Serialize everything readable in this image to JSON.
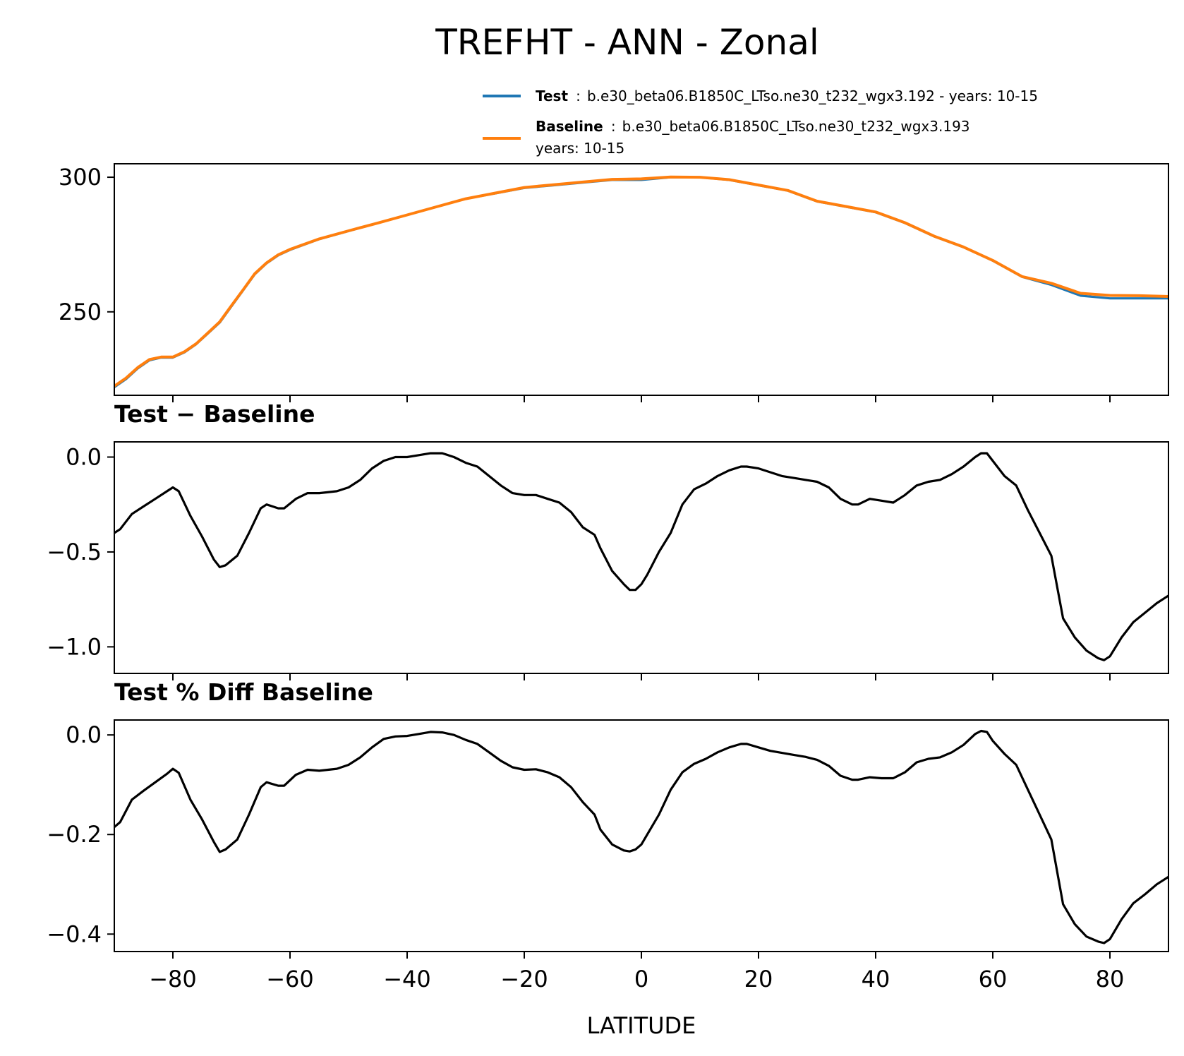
{
  "title": "TREFHT - ANN - Zonal",
  "legend": [
    {
      "name": "Test",
      "separator": ":",
      "text": "b.e30_beta06.B1850C_LTso.ne30_t232_wgx3.192 - years: 10-15",
      "text2": "",
      "color": "#1f77b4"
    },
    {
      "name": "Baseline",
      "separator": ":",
      "text": "b.e30_beta06.B1850C_LTso.ne30_t232_wgx3.193",
      "text2": "years: 10-15",
      "color": "#ff7f0e"
    }
  ],
  "chart_data": [
    {
      "type": "line",
      "title": "",
      "xlim": [
        -90,
        90
      ],
      "ylim": [
        219,
        305
      ],
      "yticks": [
        250,
        300
      ],
      "ytick_labels": [
        "250",
        "300"
      ],
      "series": [
        {
          "name": "Test",
          "color": "#1f77b4",
          "x": [
            -90,
            -88,
            -86,
            -84,
            -82,
            -80,
            -78,
            -76,
            -74,
            -72,
            -70,
            -68,
            -66,
            -64,
            -62,
            -60,
            -55,
            -50,
            -45,
            -40,
            -35,
            -30,
            -25,
            -20,
            -15,
            -10,
            -5,
            0,
            5,
            10,
            15,
            20,
            25,
            30,
            35,
            40,
            45,
            50,
            55,
            60,
            65,
            70,
            75,
            80,
            85,
            90
          ],
          "y": [
            222,
            225,
            229,
            232,
            233,
            233,
            235,
            238,
            242,
            246,
            252,
            258,
            264,
            268,
            271,
            273,
            277,
            280,
            283,
            286,
            289,
            292,
            294,
            296,
            297,
            298,
            299,
            299,
            300,
            300,
            299,
            297,
            295,
            291,
            289,
            287,
            283,
            278,
            274,
            269,
            263,
            260,
            256,
            255,
            255,
            255
          ]
        },
        {
          "name": "Baseline",
          "color": "#ff7f0e",
          "x": [
            -90,
            -88,
            -86,
            -84,
            -82,
            -80,
            -78,
            -76,
            -74,
            -72,
            -70,
            -68,
            -66,
            -64,
            -62,
            -60,
            -55,
            -50,
            -45,
            -40,
            -35,
            -30,
            -25,
            -20,
            -15,
            -10,
            -5,
            0,
            5,
            10,
            15,
            20,
            25,
            30,
            35,
            40,
            45,
            50,
            55,
            60,
            65,
            70,
            75,
            80,
            85,
            90
          ],
          "y": [
            222.4,
            225.4,
            229.3,
            232.3,
            233.2,
            233.2,
            235.2,
            238.2,
            242.2,
            246.3,
            252.3,
            258.2,
            264.2,
            268.2,
            271.2,
            273.2,
            277.1,
            280.1,
            283.0,
            286.0,
            289.0,
            292.0,
            294.1,
            296.2,
            297.2,
            298.2,
            299.2,
            299.4,
            300.1,
            300.0,
            299.1,
            297.1,
            295.1,
            291.1,
            289.1,
            287.1,
            283.1,
            278.1,
            274.1,
            269.1,
            263.1,
            260.6,
            256.9,
            256.1,
            256.0,
            255.7
          ]
        }
      ]
    },
    {
      "type": "line",
      "title": "Test − Baseline",
      "xlim": [
        -90,
        90
      ],
      "ylim": [
        -1.14,
        0.08
      ],
      "yticks": [
        0.0,
        -0.5,
        -1.0
      ],
      "ytick_labels": [
        "0.0",
        "−0.5",
        "−1.0"
      ],
      "series": [
        {
          "name": "Test − Baseline",
          "color": "#000000",
          "x": [
            -90,
            -89,
            -87,
            -85,
            -83,
            -81,
            -80,
            -79,
            -77,
            -75,
            -73,
            -72,
            -71,
            -69,
            -67,
            -65,
            -64,
            -62,
            -61,
            -59,
            -57,
            -55,
            -52,
            -50,
            -48,
            -46,
            -44,
            -42,
            -40,
            -38,
            -36,
            -34,
            -32,
            -30,
            -28,
            -26,
            -24,
            -22,
            -20,
            -18,
            -16,
            -14,
            -12,
            -10,
            -8,
            -7,
            -5,
            -3,
            -2,
            -1,
            0,
            1,
            3,
            5,
            7,
            9,
            11,
            13,
            15,
            17,
            18,
            20,
            22,
            24,
            26,
            28,
            30,
            32,
            34,
            36,
            37,
            39,
            41,
            43,
            45,
            47,
            49,
            51,
            53,
            55,
            57,
            58,
            59,
            60,
            62,
            64,
            66,
            68,
            70,
            72,
            74,
            76,
            78,
            79,
            80,
            82,
            84,
            86,
            88,
            90
          ],
          "y": [
            -0.4,
            -0.38,
            -0.3,
            -0.26,
            -0.22,
            -0.18,
            -0.16,
            -0.18,
            -0.31,
            -0.42,
            -0.54,
            -0.58,
            -0.57,
            -0.52,
            -0.4,
            -0.27,
            -0.25,
            -0.27,
            -0.27,
            -0.22,
            -0.19,
            -0.19,
            -0.18,
            -0.16,
            -0.12,
            -0.06,
            -0.02,
            0.0,
            0.0,
            0.01,
            0.02,
            0.02,
            0.0,
            -0.03,
            -0.05,
            -0.1,
            -0.15,
            -0.19,
            -0.2,
            -0.2,
            -0.22,
            -0.24,
            -0.29,
            -0.37,
            -0.41,
            -0.48,
            -0.6,
            -0.67,
            -0.7,
            -0.7,
            -0.67,
            -0.62,
            -0.5,
            -0.4,
            -0.25,
            -0.17,
            -0.14,
            -0.1,
            -0.07,
            -0.05,
            -0.05,
            -0.06,
            -0.08,
            -0.1,
            -0.11,
            -0.12,
            -0.13,
            -0.16,
            -0.22,
            -0.25,
            -0.25,
            -0.22,
            -0.23,
            -0.24,
            -0.2,
            -0.15,
            -0.13,
            -0.12,
            -0.09,
            -0.05,
            0.0,
            0.02,
            0.02,
            -0.02,
            -0.1,
            -0.15,
            -0.28,
            -0.4,
            -0.52,
            -0.85,
            -0.95,
            -1.02,
            -1.06,
            -1.07,
            -1.05,
            -0.95,
            -0.87,
            -0.82,
            -0.77,
            -0.73
          ]
        }
      ]
    },
    {
      "type": "line",
      "title": "Test % Diff Baseline",
      "xlabel": "LATITUDE",
      "xlim": [
        -90,
        90
      ],
      "ylim": [
        -0.435,
        0.03
      ],
      "xticks": [
        -80,
        -60,
        -40,
        -20,
        0,
        20,
        40,
        60,
        80
      ],
      "xtick_labels": [
        "−80",
        "−60",
        "−40",
        "−20",
        "0",
        "20",
        "40",
        "60",
        "80"
      ],
      "yticks": [
        0.0,
        -0.2,
        -0.4
      ],
      "ytick_labels": [
        "0.0",
        "−0.2",
        "−0.4"
      ],
      "series": [
        {
          "name": "Test % Diff Baseline",
          "color": "#000000",
          "x": [
            -90,
            -89,
            -87,
            -85,
            -83,
            -81,
            -80,
            -79,
            -77,
            -75,
            -73,
            -72,
            -71,
            -69,
            -67,
            -65,
            -64,
            -62,
            -61,
            -59,
            -57,
            -55,
            -52,
            -50,
            -48,
            -46,
            -44,
            -42,
            -40,
            -38,
            -36,
            -34,
            -32,
            -30,
            -28,
            -26,
            -24,
            -22,
            -20,
            -18,
            -16,
            -14,
            -12,
            -10,
            -8,
            -7,
            -5,
            -3,
            -2,
            -1,
            0,
            1,
            3,
            5,
            7,
            9,
            11,
            13,
            15,
            17,
            18,
            20,
            22,
            24,
            26,
            28,
            30,
            32,
            34,
            36,
            37,
            39,
            41,
            43,
            45,
            47,
            49,
            51,
            53,
            55,
            57,
            58,
            59,
            60,
            62,
            64,
            66,
            68,
            70,
            72,
            74,
            76,
            78,
            79,
            80,
            82,
            84,
            86,
            88,
            90
          ],
          "y": [
            -0.185,
            -0.175,
            -0.13,
            -0.112,
            -0.095,
            -0.078,
            -0.068,
            -0.076,
            -0.13,
            -0.17,
            -0.215,
            -0.235,
            -0.23,
            -0.21,
            -0.16,
            -0.105,
            -0.095,
            -0.102,
            -0.102,
            -0.08,
            -0.07,
            -0.072,
            -0.068,
            -0.06,
            -0.045,
            -0.025,
            -0.008,
            -0.003,
            -0.002,
            0.002,
            0.006,
            0.005,
            0.0,
            -0.01,
            -0.018,
            -0.035,
            -0.052,
            -0.065,
            -0.07,
            -0.069,
            -0.075,
            -0.085,
            -0.105,
            -0.135,
            -0.16,
            -0.19,
            -0.22,
            -0.232,
            -0.234,
            -0.23,
            -0.22,
            -0.2,
            -0.16,
            -0.11,
            -0.075,
            -0.058,
            -0.048,
            -0.035,
            -0.025,
            -0.018,
            -0.018,
            -0.025,
            -0.032,
            -0.036,
            -0.04,
            -0.044,
            -0.05,
            -0.062,
            -0.082,
            -0.09,
            -0.09,
            -0.085,
            -0.087,
            -0.087,
            -0.075,
            -0.055,
            -0.048,
            -0.045,
            -0.035,
            -0.02,
            0.002,
            0.008,
            0.006,
            -0.012,
            -0.038,
            -0.06,
            -0.11,
            -0.16,
            -0.21,
            -0.34,
            -0.38,
            -0.405,
            -0.415,
            -0.418,
            -0.41,
            -0.37,
            -0.338,
            -0.32,
            -0.3,
            -0.285
          ]
        }
      ]
    }
  ]
}
